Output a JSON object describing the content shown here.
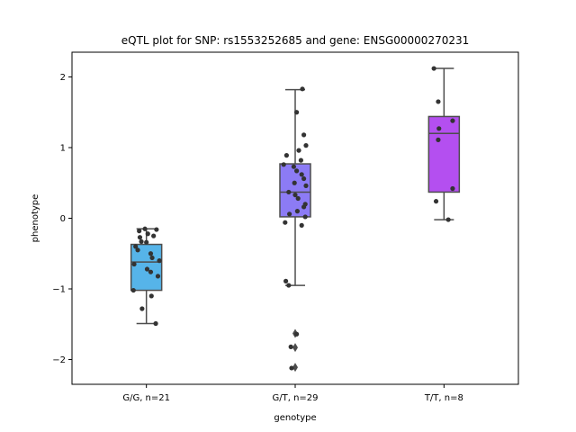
{
  "chart_data": {
    "type": "box",
    "title": "eQTL plot for SNP: rs1553252685 and gene: ENSG00000270231",
    "xlabel": "genotype",
    "ylabel": "phenotype",
    "ylim": [
      -2.35,
      2.35
    ],
    "yticks": [
      -2,
      -1,
      0,
      1,
      2
    ],
    "ytick_labels": [
      "−2",
      "−1",
      "0",
      "1",
      "2"
    ],
    "grid": false,
    "categories": [
      "G/G, n=21",
      "G/T, n=29",
      "T/T, n=8"
    ],
    "groups": [
      {
        "category": "G/G, n=21",
        "color": "#56b4e9",
        "box": {
          "whisker_low": -1.49,
          "q1": -1.02,
          "median": -0.62,
          "q3": -0.37,
          "whisker_high": -0.15
        },
        "outliers": [],
        "points": [
          {
            "jitter": -0.02,
            "y": -0.15
          },
          {
            "jitter": -0.1,
            "y": -0.18
          },
          {
            "jitter": 0.02,
            "y": -0.22
          },
          {
            "jitter": 0.14,
            "y": -0.16
          },
          {
            "jitter": -0.09,
            "y": -0.27
          },
          {
            "jitter": -0.07,
            "y": -0.33
          },
          {
            "jitter": 0.0,
            "y": -0.34
          },
          {
            "jitter": 0.1,
            "y": -0.25
          },
          {
            "jitter": -0.15,
            "y": -0.4
          },
          {
            "jitter": -0.12,
            "y": -0.45
          },
          {
            "jitter": 0.06,
            "y": -0.5
          },
          {
            "jitter": 0.08,
            "y": -0.56
          },
          {
            "jitter": 0.18,
            "y": -0.6
          },
          {
            "jitter": -0.17,
            "y": -0.65
          },
          {
            "jitter": 0.01,
            "y": -0.72
          },
          {
            "jitter": 0.06,
            "y": -0.76
          },
          {
            "jitter": 0.16,
            "y": -0.82
          },
          {
            "jitter": -0.18,
            "y": -1.02
          },
          {
            "jitter": 0.07,
            "y": -1.1
          },
          {
            "jitter": -0.06,
            "y": -1.28
          },
          {
            "jitter": 0.13,
            "y": -1.49
          }
        ]
      },
      {
        "category": "G/T, n=29",
        "color": "#8c7bf5",
        "box": {
          "whisker_low": -0.95,
          "q1": 0.02,
          "median": 0.37,
          "q3": 0.77,
          "whisker_high": 1.82
        },
        "outliers": [
          -1.63,
          -1.83,
          -2.11
        ],
        "points": [
          {
            "jitter": 0.1,
            "y": 1.83
          },
          {
            "jitter": 0.02,
            "y": 1.5
          },
          {
            "jitter": 0.12,
            "y": 1.18
          },
          {
            "jitter": 0.15,
            "y": 1.03
          },
          {
            "jitter": 0.05,
            "y": 0.96
          },
          {
            "jitter": -0.12,
            "y": 0.89
          },
          {
            "jitter": 0.08,
            "y": 0.82
          },
          {
            "jitter": -0.16,
            "y": 0.76
          },
          {
            "jitter": -0.02,
            "y": 0.73
          },
          {
            "jitter": 0.02,
            "y": 0.67
          },
          {
            "jitter": 0.09,
            "y": 0.62
          },
          {
            "jitter": 0.12,
            "y": 0.56
          },
          {
            "jitter": -0.01,
            "y": 0.5
          },
          {
            "jitter": 0.15,
            "y": 0.46
          },
          {
            "jitter": -0.09,
            "y": 0.37
          },
          {
            "jitter": 0.0,
            "y": 0.33
          },
          {
            "jitter": 0.04,
            "y": 0.28
          },
          {
            "jitter": 0.14,
            "y": 0.2
          },
          {
            "jitter": 0.12,
            "y": 0.16
          },
          {
            "jitter": 0.03,
            "y": 0.1
          },
          {
            "jitter": -0.08,
            "y": 0.06
          },
          {
            "jitter": 0.14,
            "y": 0.02
          },
          {
            "jitter": -0.14,
            "y": -0.06
          },
          {
            "jitter": 0.09,
            "y": -0.1
          },
          {
            "jitter": -0.13,
            "y": -0.89
          },
          {
            "jitter": -0.09,
            "y": -0.95
          },
          {
            "jitter": 0.02,
            "y": -1.64
          },
          {
            "jitter": -0.06,
            "y": -1.82
          },
          {
            "jitter": -0.05,
            "y": -2.12
          }
        ]
      },
      {
        "category": "T/T, n=8",
        "color": "#b44ff0",
        "box": {
          "whisker_low": -0.02,
          "q1": 0.37,
          "median": 1.2,
          "q3": 1.44,
          "whisker_high": 2.12
        },
        "outliers": [],
        "points": [
          {
            "jitter": -0.14,
            "y": 2.12
          },
          {
            "jitter": -0.08,
            "y": 1.65
          },
          {
            "jitter": 0.12,
            "y": 1.38
          },
          {
            "jitter": -0.07,
            "y": 1.27
          },
          {
            "jitter": -0.08,
            "y": 1.11
          },
          {
            "jitter": 0.12,
            "y": 0.42
          },
          {
            "jitter": -0.11,
            "y": 0.24
          },
          {
            "jitter": 0.06,
            "y": -0.02
          }
        ]
      }
    ]
  }
}
